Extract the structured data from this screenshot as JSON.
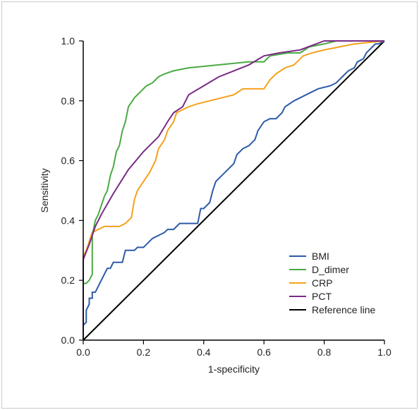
{
  "chart_data": {
    "type": "line",
    "title": "",
    "xlabel": "1-specificity",
    "ylabel": "Sensitivity",
    "xlim": [
      0,
      1
    ],
    "ylim": [
      0,
      1
    ],
    "x_ticks": [
      "0.0",
      "0.2",
      "0.4",
      "0.6",
      "0.8",
      "1.0"
    ],
    "y_ticks": [
      "0.0",
      "0.2",
      "0.4",
      "0.6",
      "0.8",
      "1.0"
    ],
    "grid": false,
    "legend_position": "bottom-right",
    "series": [
      {
        "name": "BMI",
        "color": "#2e5aa8",
        "points": [
          [
            0,
            0
          ],
          [
            0,
            0.05
          ],
          [
            0.01,
            0.06
          ],
          [
            0.01,
            0.1
          ],
          [
            0.02,
            0.12
          ],
          [
            0.02,
            0.14
          ],
          [
            0.03,
            0.14
          ],
          [
            0.03,
            0.16
          ],
          [
            0.04,
            0.16
          ],
          [
            0.05,
            0.18
          ],
          [
            0.06,
            0.2
          ],
          [
            0.07,
            0.22
          ],
          [
            0.08,
            0.24
          ],
          [
            0.09,
            0.24
          ],
          [
            0.1,
            0.26
          ],
          [
            0.13,
            0.26
          ],
          [
            0.14,
            0.3
          ],
          [
            0.17,
            0.3
          ],
          [
            0.18,
            0.31
          ],
          [
            0.2,
            0.31
          ],
          [
            0.22,
            0.33
          ],
          [
            0.23,
            0.34
          ],
          [
            0.25,
            0.35
          ],
          [
            0.27,
            0.36
          ],
          [
            0.28,
            0.37
          ],
          [
            0.3,
            0.37
          ],
          [
            0.32,
            0.39
          ],
          [
            0.38,
            0.39
          ],
          [
            0.39,
            0.44
          ],
          [
            0.4,
            0.44
          ],
          [
            0.42,
            0.46
          ],
          [
            0.43,
            0.5
          ],
          [
            0.44,
            0.53
          ],
          [
            0.46,
            0.55
          ],
          [
            0.48,
            0.57
          ],
          [
            0.5,
            0.59
          ],
          [
            0.51,
            0.62
          ],
          [
            0.53,
            0.64
          ],
          [
            0.55,
            0.65
          ],
          [
            0.57,
            0.67
          ],
          [
            0.58,
            0.7
          ],
          [
            0.6,
            0.73
          ],
          [
            0.62,
            0.74
          ],
          [
            0.64,
            0.74
          ],
          [
            0.66,
            0.76
          ],
          [
            0.67,
            0.78
          ],
          [
            0.7,
            0.8
          ],
          [
            0.72,
            0.81
          ],
          [
            0.76,
            0.83
          ],
          [
            0.78,
            0.84
          ],
          [
            0.82,
            0.85
          ],
          [
            0.84,
            0.86
          ],
          [
            0.86,
            0.88
          ],
          [
            0.88,
            0.9
          ],
          [
            0.9,
            0.91
          ],
          [
            0.91,
            0.93
          ],
          [
            0.93,
            0.94
          ],
          [
            0.94,
            0.96
          ],
          [
            0.95,
            0.97
          ],
          [
            0.96,
            0.98
          ],
          [
            0.97,
            0.99
          ],
          [
            0.98,
            0.99
          ],
          [
            1,
            1
          ]
        ]
      },
      {
        "name": "D_dimer",
        "color": "#4aaa44",
        "points": [
          [
            0,
            0
          ],
          [
            0,
            0.19
          ],
          [
            0.01,
            0.19
          ],
          [
            0.02,
            0.2
          ],
          [
            0.03,
            0.22
          ],
          [
            0.03,
            0.35
          ],
          [
            0.04,
            0.4
          ],
          [
            0.05,
            0.42
          ],
          [
            0.06,
            0.45
          ],
          [
            0.07,
            0.48
          ],
          [
            0.08,
            0.5
          ],
          [
            0.09,
            0.55
          ],
          [
            0.1,
            0.58
          ],
          [
            0.11,
            0.63
          ],
          [
            0.12,
            0.65
          ],
          [
            0.13,
            0.7
          ],
          [
            0.14,
            0.73
          ],
          [
            0.15,
            0.78
          ],
          [
            0.17,
            0.81
          ],
          [
            0.19,
            0.83
          ],
          [
            0.21,
            0.85
          ],
          [
            0.23,
            0.86
          ],
          [
            0.25,
            0.88
          ],
          [
            0.27,
            0.89
          ],
          [
            0.3,
            0.9
          ],
          [
            0.35,
            0.91
          ],
          [
            0.45,
            0.92
          ],
          [
            0.55,
            0.93
          ],
          [
            0.6,
            0.93
          ],
          [
            0.62,
            0.95
          ],
          [
            0.68,
            0.96
          ],
          [
            0.72,
            0.96
          ],
          [
            0.75,
            0.98
          ],
          [
            0.8,
            0.99
          ],
          [
            0.84,
            1
          ],
          [
            1,
            1
          ]
        ]
      },
      {
        "name": "CRP",
        "color": "#f5a11c",
        "points": [
          [
            0,
            0
          ],
          [
            0,
            0.28
          ],
          [
            0.01,
            0.3
          ],
          [
            0.02,
            0.33
          ],
          [
            0.03,
            0.36
          ],
          [
            0.05,
            0.37
          ],
          [
            0.07,
            0.38
          ],
          [
            0.12,
            0.38
          ],
          [
            0.14,
            0.39
          ],
          [
            0.16,
            0.41
          ],
          [
            0.17,
            0.47
          ],
          [
            0.18,
            0.5
          ],
          [
            0.2,
            0.53
          ],
          [
            0.22,
            0.56
          ],
          [
            0.24,
            0.6
          ],
          [
            0.25,
            0.64
          ],
          [
            0.27,
            0.67
          ],
          [
            0.28,
            0.7
          ],
          [
            0.3,
            0.73
          ],
          [
            0.31,
            0.76
          ],
          [
            0.33,
            0.77
          ],
          [
            0.35,
            0.78
          ],
          [
            0.38,
            0.79
          ],
          [
            0.42,
            0.8
          ],
          [
            0.46,
            0.81
          ],
          [
            0.5,
            0.82
          ],
          [
            0.53,
            0.84
          ],
          [
            0.6,
            0.84
          ],
          [
            0.62,
            0.87
          ],
          [
            0.64,
            0.89
          ],
          [
            0.67,
            0.91
          ],
          [
            0.7,
            0.92
          ],
          [
            0.73,
            0.95
          ],
          [
            0.76,
            0.96
          ],
          [
            0.8,
            0.97
          ],
          [
            0.85,
            0.98
          ],
          [
            0.9,
            0.99
          ],
          [
            1,
            1
          ]
        ]
      },
      {
        "name": "PCT",
        "color": "#7a2a86",
        "points": [
          [
            0,
            0
          ],
          [
            0,
            0.27
          ],
          [
            0.02,
            0.32
          ],
          [
            0.04,
            0.38
          ],
          [
            0.06,
            0.42
          ],
          [
            0.1,
            0.49
          ],
          [
            0.15,
            0.57
          ],
          [
            0.2,
            0.63
          ],
          [
            0.25,
            0.68
          ],
          [
            0.28,
            0.73
          ],
          [
            0.3,
            0.76
          ],
          [
            0.33,
            0.78
          ],
          [
            0.35,
            0.82
          ],
          [
            0.4,
            0.85
          ],
          [
            0.45,
            0.88
          ],
          [
            0.5,
            0.9
          ],
          [
            0.55,
            0.92
          ],
          [
            0.6,
            0.95
          ],
          [
            0.65,
            0.96
          ],
          [
            0.72,
            0.97
          ],
          [
            0.8,
            1
          ],
          [
            1,
            1
          ]
        ]
      },
      {
        "name": "Reference line",
        "color": "#000000",
        "points": [
          [
            0,
            0
          ],
          [
            1,
            1
          ]
        ]
      }
    ]
  }
}
